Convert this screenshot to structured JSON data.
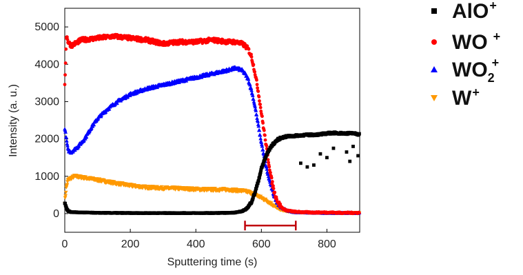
{
  "chart_data": {
    "type": "scatter",
    "title": "",
    "xlabel": "Sputtering time (s)",
    "ylabel": "Intensity (a. u.)",
    "xlim": [
      0,
      900
    ],
    "ylim": [
      -500,
      5500
    ],
    "xticks": [
      0,
      200,
      400,
      600,
      800
    ],
    "yticks": [
      0,
      1000,
      2000,
      3000,
      4000,
      5000
    ],
    "x_tick_labels": [
      "0",
      "200",
      "400",
      "600",
      "800"
    ],
    "y_tick_labels": [
      "0",
      "1000",
      "2000",
      "3000",
      "4000",
      "5000"
    ],
    "grid": false,
    "legend_position": "right",
    "series": [
      {
        "name": "AlO+",
        "legend_base": "AlO",
        "legend_sup": "+",
        "legend_sub": "",
        "marker": "square",
        "color": "#000000",
        "x": [
          0,
          5,
          10,
          20,
          50,
          100,
          200,
          300,
          400,
          450,
          500,
          520,
          540,
          550,
          560,
          570,
          580,
          590,
          600,
          610,
          620,
          630,
          640,
          650,
          660,
          680,
          700,
          720,
          750,
          780,
          800,
          820,
          850,
          880,
          900
        ],
        "y": [
          300,
          150,
          70,
          40,
          30,
          20,
          15,
          15,
          15,
          15,
          20,
          30,
          60,
          100,
          180,
          320,
          550,
          850,
          1200,
          1450,
          1650,
          1800,
          1900,
          1980,
          2030,
          2070,
          2080,
          2100,
          2110,
          2120,
          2150,
          2160,
          2150,
          2150,
          2120
        ]
      },
      {
        "name": "WO+",
        "legend_base": "WO",
        "legend_sup": "+",
        "legend_sub": "",
        "marker": "circle",
        "color": "#ff0000",
        "x": [
          0,
          5,
          10,
          20,
          50,
          100,
          150,
          200,
          250,
          300,
          350,
          400,
          450,
          500,
          520,
          540,
          550,
          560,
          570,
          580,
          590,
          600,
          610,
          620,
          630,
          640,
          650,
          660,
          670,
          680,
          700,
          720,
          750,
          800,
          850,
          900
        ],
        "y": [
          3400,
          4800,
          4600,
          4500,
          4650,
          4700,
          4750,
          4700,
          4650,
          4550,
          4600,
          4600,
          4650,
          4600,
          4600,
          4550,
          4500,
          4400,
          4200,
          3800,
          3300,
          2700,
          2100,
          1500,
          950,
          550,
          320,
          180,
          110,
          80,
          50,
          40,
          30,
          30,
          20,
          20
        ]
      },
      {
        "name": "WO2+",
        "legend_base": "WO",
        "legend_sup": "+",
        "legend_sub": "2",
        "marker": "triangle-up",
        "color": "#0000ff",
        "x": [
          0,
          5,
          10,
          20,
          40,
          60,
          80,
          100,
          130,
          160,
          200,
          250,
          300,
          350,
          400,
          450,
          500,
          520,
          540,
          550,
          560,
          570,
          580,
          590,
          600,
          610,
          620,
          630,
          640,
          650,
          660,
          680,
          700,
          750,
          800,
          850,
          900
        ],
        "y": [
          2300,
          2000,
          1700,
          1650,
          1800,
          2000,
          2300,
          2550,
          2800,
          3000,
          3200,
          3350,
          3450,
          3550,
          3650,
          3750,
          3850,
          3900,
          3850,
          3750,
          3600,
          3300,
          2900,
          2400,
          1900,
          1450,
          1050,
          720,
          450,
          280,
          170,
          80,
          40,
          25,
          20,
          20,
          15
        ]
      },
      {
        "name": "W+",
        "legend_base": "W",
        "legend_sup": "+",
        "legend_sub": "",
        "marker": "triangle-down",
        "color": "#ff9900",
        "x": [
          0,
          5,
          10,
          20,
          30,
          50,
          80,
          100,
          150,
          200,
          250,
          300,
          350,
          400,
          450,
          500,
          520,
          540,
          560,
          580,
          600,
          610,
          620,
          630,
          640,
          650,
          660,
          680,
          700,
          750,
          800,
          850,
          900
        ],
        "y": [
          300,
          700,
          900,
          950,
          1000,
          970,
          930,
          900,
          820,
          750,
          700,
          680,
          670,
          650,
          640,
          640,
          620,
          610,
          580,
          510,
          420,
          370,
          320,
          260,
          200,
          140,
          100,
          60,
          40,
          30,
          20,
          20,
          15
        ]
      }
    ],
    "annotations": [
      {
        "type": "range-bar",
        "color": "#c0000b",
        "x_start": 550,
        "x_end": 705,
        "y": -320
      }
    ]
  }
}
